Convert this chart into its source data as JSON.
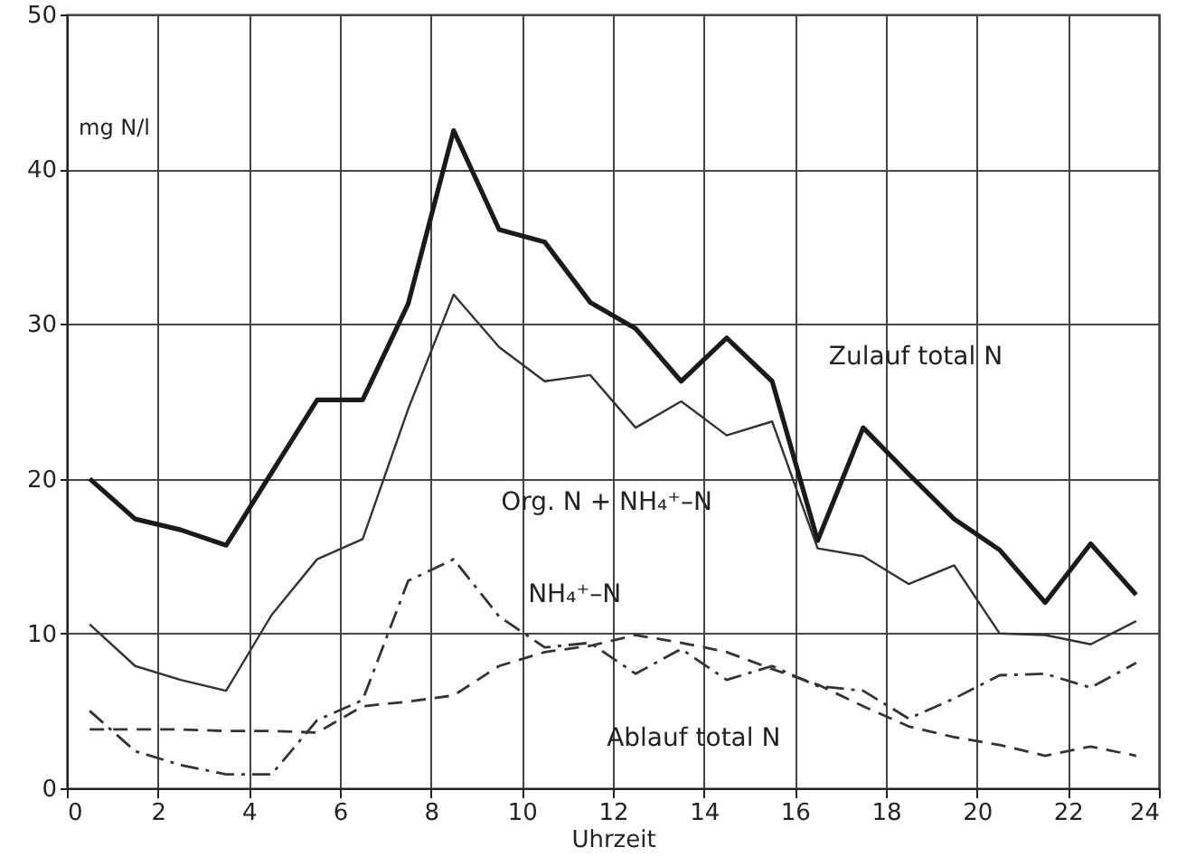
{
  "chart_data": {
    "type": "line",
    "xlabel": "Uhrzeit",
    "ylabel": "mg N/l",
    "x": [
      0.5,
      1.5,
      2.5,
      3.5,
      4.5,
      5.5,
      6.5,
      7.5,
      8.5,
      9.5,
      10.5,
      11.5,
      12.5,
      13.5,
      14.5,
      15.5,
      16.5,
      17.5,
      18.5,
      19.5,
      20.5,
      21.5,
      22.5,
      23.5
    ],
    "series": [
      {
        "name": "Zulauf total N",
        "color": "#1a1a1a",
        "line_style": "solid",
        "values": [
          20.0,
          17.4,
          16.7,
          15.7,
          20.4,
          25.1,
          25.1,
          31.3,
          42.5,
          36.1,
          35.3,
          31.4,
          29.7,
          26.3,
          29.1,
          26.3,
          16.0,
          23.3,
          20.3,
          17.4,
          15.4,
          12.0,
          15.8,
          12.5
        ]
      },
      {
        "name": "Org. N + NH₄⁺–N",
        "color": "#333333",
        "line_style": "solid",
        "values": [
          10.6,
          7.9,
          7.0,
          6.3,
          11.2,
          14.8,
          16.1,
          24.5,
          31.9,
          28.5,
          26.3,
          26.7,
          23.3,
          25.0,
          22.8,
          23.7,
          15.5,
          15.0,
          13.2,
          14.4,
          10.0,
          9.9,
          9.3,
          10.8
        ]
      },
      {
        "name": "NH₄⁺–N",
        "color": "#333333",
        "line_style": "dashdot",
        "values": [
          5.0,
          2.4,
          1.5,
          0.9,
          0.9,
          4.4,
          5.7,
          13.4,
          14.8,
          11.1,
          9.1,
          9.4,
          7.4,
          9.0,
          7.0,
          7.9,
          6.6,
          6.3,
          4.5,
          5.8,
          7.3,
          7.4,
          6.5,
          8.1
        ]
      },
      {
        "name": "Ablauf total N",
        "color": "#333333",
        "line_style": "dashed",
        "values": [
          3.8,
          3.8,
          3.8,
          3.7,
          3.7,
          3.6,
          5.3,
          5.6,
          6.0,
          7.9,
          8.8,
          9.2,
          9.9,
          9.4,
          8.8,
          7.7,
          6.7,
          5.3,
          4.0,
          3.3,
          2.8,
          2.1,
          2.7,
          2.1
        ]
      }
    ],
    "xlim": [
      0,
      24
    ],
    "xticks": [
      0,
      2,
      4,
      6,
      8,
      10,
      12,
      14,
      16,
      18,
      20,
      22,
      24
    ],
    "ylim": [
      0,
      50
    ],
    "yticks": [
      0,
      10,
      20,
      30,
      40,
      50
    ],
    "grid": true,
    "legend": false,
    "marker": "none"
  }
}
